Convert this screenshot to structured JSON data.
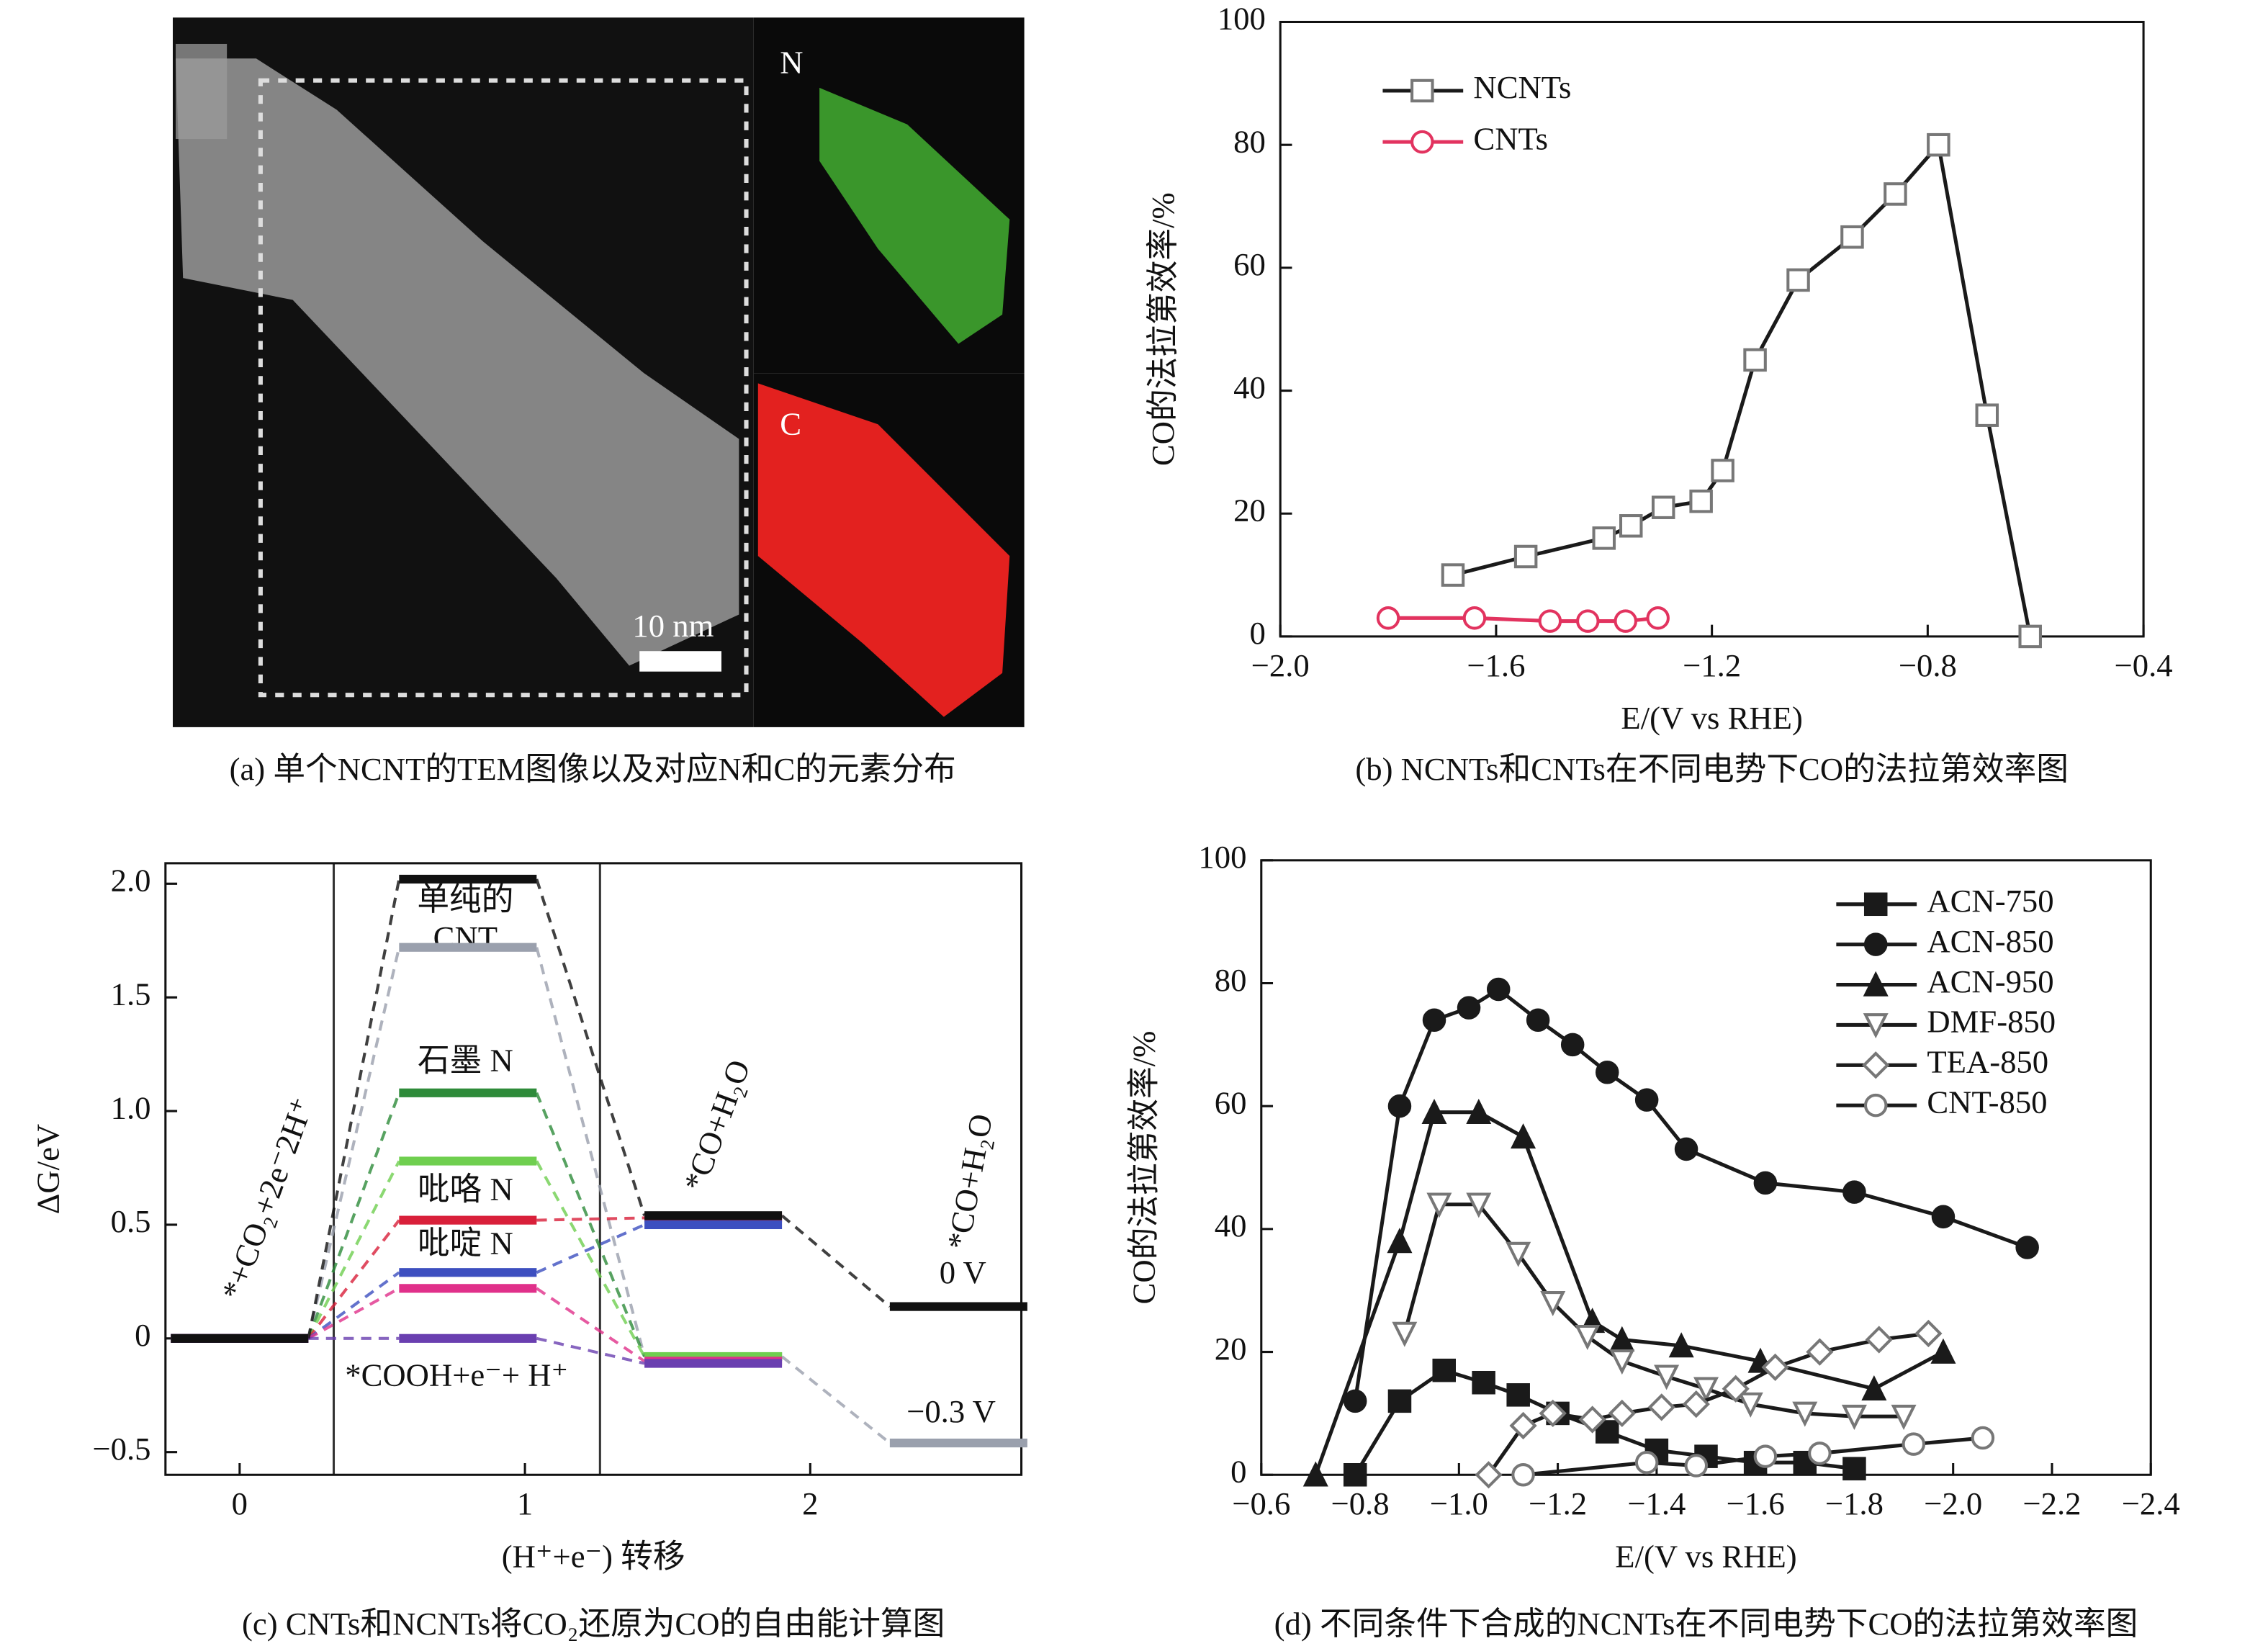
{
  "image_panel": {
    "label_n": "N",
    "label_c": "C",
    "scale_bar": "10 nm",
    "caption": "(a) 单个NCNT的TEM图像以及对应N和C的元素分布"
  },
  "chart_data": [
    {
      "type": "line",
      "caption": "(b) NCNTs和CNTs在不同电势下CO的法拉第效率图",
      "x_label": "E/(V vs RHE)",
      "y_label": "CO的法拉第效率/%",
      "xlim": [
        -2.0,
        -0.4
      ],
      "xticks": [
        {
          "value": -2.0,
          "label": "−2.0"
        },
        {
          "value": -1.6,
          "label": "−1.6"
        },
        {
          "value": -1.2,
          "label": "−1.2"
        },
        {
          "value": -0.8,
          "label": "−0.8"
        },
        {
          "value": -0.4,
          "label": "−0.4"
        }
      ],
      "ylim": [
        0,
        100
      ],
      "yticks": [
        0,
        20,
        40,
        60,
        80,
        100
      ],
      "legend": "upper left",
      "series": [
        {
          "name": "NCNTs",
          "color": "#1a1a1a",
          "marker": "square-open",
          "x": [
            -1.68,
            -1.545,
            -1.4,
            -1.35,
            -1.29,
            -1.22,
            -1.18,
            -1.12,
            -1.04,
            -0.94,
            -0.86,
            -0.78,
            -0.69,
            -0.61
          ],
          "values": [
            10,
            13,
            16,
            18,
            21,
            22,
            27,
            45,
            58,
            65,
            72,
            80,
            36,
            0
          ]
        },
        {
          "name": "CNTs",
          "color": "#e2335f",
          "marker": "circle-open",
          "x": [
            -1.8,
            -1.64,
            -1.5,
            -1.43,
            -1.36,
            -1.3
          ],
          "values": [
            3,
            3,
            2.5,
            2.5,
            2.5,
            3
          ]
        }
      ]
    },
    {
      "type": "energy",
      "caption": "(c) CNTs和NCNTs将CO₂还原为CO的自由能计算图",
      "x_label": "(H⁺+e⁻) 转移",
      "y_label": "ΔG/eV",
      "xlim": [
        -0.26,
        2.74
      ],
      "xticks": [
        0,
        1,
        2
      ],
      "ylim": [
        -0.6,
        2.09
      ],
      "yticks": [
        {
          "value": -0.5,
          "label": "−0.5"
        },
        0,
        {
          "value": 0.5,
          "label": "0.5"
        },
        {
          "value": 1.0,
          "label": "1.0"
        },
        {
          "value": 1.5,
          "label": "1.5"
        },
        {
          "value": 2.0,
          "label": "2.0"
        }
      ],
      "x": [
        0,
        0.8,
        1.66,
        2.52
      ],
      "series": [
        {
          "color": "#9aa0ad",
          "values": [
            0,
            1.72,
            -0.08,
            -0.46
          ]
        },
        {
          "color": "#2e8b3a",
          "values": [
            0,
            1.08,
            -0.08,
            null
          ]
        },
        {
          "color": "#6fcf4f",
          "values": [
            0,
            0.78,
            -0.08,
            null
          ]
        },
        {
          "color": "#d9203a",
          "values": [
            0,
            0.52,
            0.53,
            null
          ]
        },
        {
          "color": "#3d4fc0",
          "values": [
            0,
            0.29,
            0.5,
            null
          ]
        },
        {
          "color": "#e0308a",
          "values": [
            0,
            0.22,
            -0.1,
            null
          ]
        },
        {
          "color": "#6a3fb0",
          "values": [
            0,
            0.0,
            -0.11,
            null
          ]
        },
        {
          "color": "#111111",
          "values": [
            0,
            2.02,
            0.54,
            0.14
          ]
        }
      ],
      "annotations": {
        "start": "*+CO₂+2e⁻2H⁺",
        "pure": "单纯的",
        "cnt": "CNT",
        "graphitic": "石墨 N",
        "pyrrolic": "吡咯 N",
        "pyridinic": "吡啶 N",
        "cooh": "*COOH+e⁻+ H⁺",
        "co_mid": "*CO+H₂O",
        "co_end": "*CO+H₂O",
        "v0": "0 V",
        "v03": "−0.3 V"
      }
    },
    {
      "type": "line",
      "caption": "(d) 不同条件下合成的NCNTs在不同电势下CO的法拉第效率图",
      "x_label": "E/(V vs RHE)",
      "y_label": "CO的法拉第效率/%",
      "xlim": [
        -0.6,
        -2.4
      ],
      "xticks": [
        {
          "value": -0.6,
          "label": "−0.6"
        },
        {
          "value": -0.8,
          "label": "−0.8"
        },
        {
          "value": -1.0,
          "label": "−1.0"
        },
        {
          "value": -1.2,
          "label": "−1.2"
        },
        {
          "value": -1.4,
          "label": "−1.4"
        },
        {
          "value": -1.6,
          "label": "−1.6"
        },
        {
          "value": -1.8,
          "label": "−1.8"
        },
        {
          "value": -2.0,
          "label": "−2.0"
        },
        {
          "value": -2.2,
          "label": "−2.2"
        },
        {
          "value": -2.4,
          "label": "−2.4"
        }
      ],
      "ylim": [
        0,
        100
      ],
      "yticks": [
        0,
        20,
        40,
        60,
        80,
        100
      ],
      "legend": "upper right",
      "series": [
        {
          "name": "ACN-750",
          "color": "#1a1a1a",
          "marker": "square-filled",
          "x": [
            -0.79,
            -0.88,
            -0.97,
            -1.05,
            -1.12,
            -1.2,
            -1.3,
            -1.4,
            -1.5,
            -1.6,
            -1.7,
            -1.8
          ],
          "values": [
            0,
            12,
            17,
            15,
            13,
            10,
            7,
            4,
            3,
            2,
            2,
            1
          ]
        },
        {
          "name": "ACN-850",
          "color": "#1a1a1a",
          "marker": "circle-filled",
          "x": [
            -0.79,
            -0.88,
            -0.95,
            -1.02,
            -1.08,
            -1.16,
            -1.23,
            -1.3,
            -1.38,
            -1.46,
            -1.62,
            -1.8,
            -1.98,
            -2.15
          ],
          "values": [
            12,
            60,
            74,
            76,
            79,
            74,
            70,
            65.5,
            61,
            53,
            47.5,
            46,
            42,
            37
          ]
        },
        {
          "name": "ACN-950",
          "color": "#1a1a1a",
          "marker": "triangle-filled",
          "x": [
            -0.71,
            -0.88,
            -0.95,
            -1.04,
            -1.13,
            -1.27,
            -1.33,
            -1.45,
            -1.61,
            -1.84,
            -1.98
          ],
          "values": [
            0,
            38,
            59,
            59,
            55,
            25,
            22,
            21,
            18.5,
            14,
            20
          ]
        },
        {
          "name": "DMF-850",
          "color": "#1a1a1a",
          "marker": "triangle-down-open",
          "x": [
            -0.89,
            -0.96,
            -1.04,
            -1.12,
            -1.19,
            -1.26,
            -1.33,
            -1.42,
            -1.5,
            -1.59,
            -1.7,
            -1.8,
            -1.9
          ],
          "values": [
            23,
            44,
            44,
            36,
            28,
            22.5,
            18.5,
            16,
            14,
            11.5,
            10,
            9.5,
            9.5
          ]
        },
        {
          "name": "TEA-850",
          "color": "#1a1a1a",
          "marker": "diamond-open",
          "x": [
            -1.06,
            -1.13,
            -1.19,
            -1.27,
            -1.33,
            -1.41,
            -1.48,
            -1.56,
            -1.64,
            -1.73,
            -1.85,
            -1.95
          ],
          "values": [
            0,
            8,
            10,
            9,
            10,
            11,
            11.5,
            14,
            17.5,
            20,
            22,
            23
          ]
        },
        {
          "name": "CNT-850",
          "color": "#1a1a1a",
          "marker": "circle-open",
          "x": [
            -1.13,
            -1.38,
            -1.48,
            -1.62,
            -1.73,
            -1.92,
            -2.06
          ],
          "values": [
            0,
            2,
            1.5,
            3,
            3.5,
            5,
            6
          ]
        }
      ]
    }
  ]
}
